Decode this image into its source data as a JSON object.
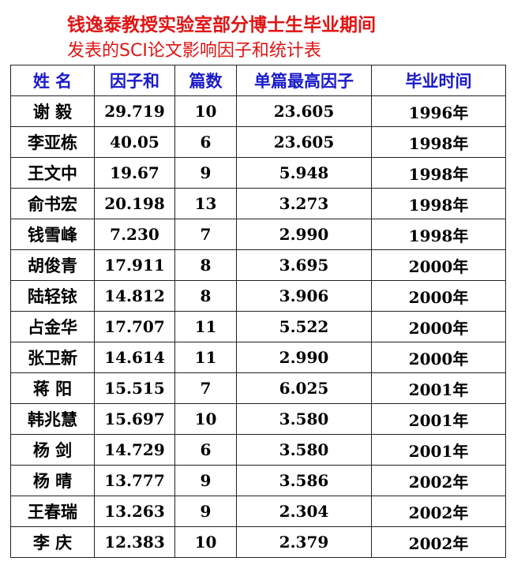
{
  "title_line1": "钱逸泰教授实验室部分博士生毕业期间",
  "title_line2": "发表的SCI论文影响因子和统计表",
  "colors": {
    "title": "#e11414",
    "header": "#1a1acc",
    "text": "#000000",
    "border": "#222222"
  },
  "table": {
    "headers": [
      "姓 名",
      "因子和",
      "篇数",
      "单篇最高因子",
      "毕业时间"
    ],
    "rows": [
      [
        "谢 毅",
        "29.719",
        "10",
        "23.605",
        "1996年"
      ],
      [
        "李亚栋",
        "40.05",
        "6",
        "23.605",
        "1998年"
      ],
      [
        "王文中",
        "19.67",
        "9",
        "5.948",
        "1998年"
      ],
      [
        "俞书宏",
        "20.198",
        "13",
        "3.273",
        "1998年"
      ],
      [
        "钱雪峰",
        "7.230",
        "7",
        "2.990",
        "1998年"
      ],
      [
        "胡俊青",
        "17.911",
        "8",
        "3.695",
        "2000年"
      ],
      [
        "陆轻铱",
        "14.812",
        "8",
        "3.906",
        "2000年"
      ],
      [
        "占金华",
        "17.707",
        "11",
        "5.522",
        "2000年"
      ],
      [
        "张卫新",
        "14.614",
        "11",
        "2.990",
        "2000年"
      ],
      [
        "蒋 阳",
        "15.515",
        "7",
        "6.025",
        "2001年"
      ],
      [
        "韩兆慧",
        "15.697",
        "10",
        "3.580",
        "2001年"
      ],
      [
        "杨 剑",
        "14.729",
        "6",
        "3.580",
        "2001年"
      ],
      [
        "杨 晴",
        "13.777",
        "9",
        "3.586",
        "2002年"
      ],
      [
        "王春瑞",
        "13.263",
        "9",
        "2.304",
        "2002年"
      ],
      [
        "李 庆",
        "12.383",
        "10",
        "2.379",
        "2002年"
      ]
    ]
  }
}
